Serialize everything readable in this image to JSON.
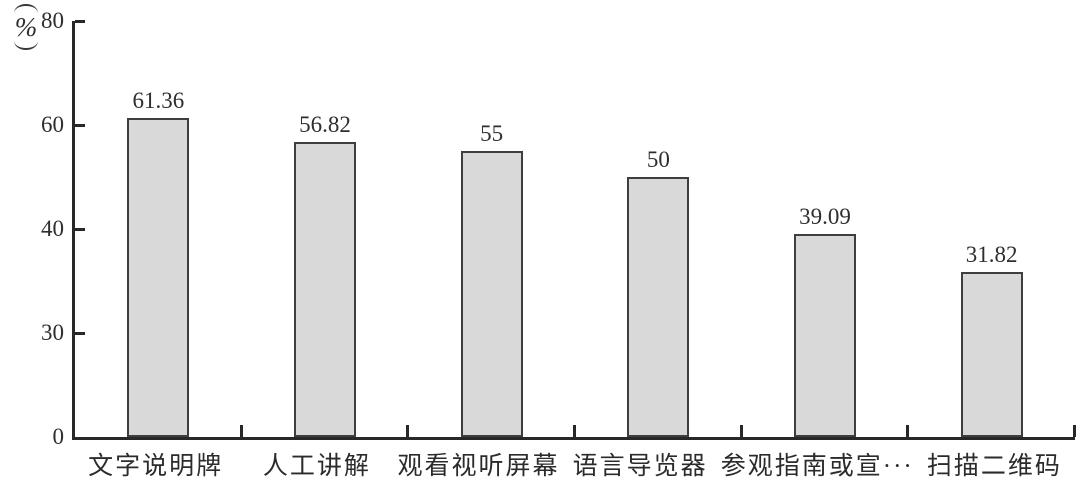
{
  "chart_data": {
    "type": "bar",
    "title": "",
    "unit_label": "%",
    "categories": [
      "文字说明牌",
      "人工讲解",
      "观看视听屏幕",
      "语言导览器",
      "参观指南或宣···",
      "扫描二维码"
    ],
    "values": [
      61.36,
      56.82,
      55,
      50,
      39.09,
      31.82
    ],
    "value_labels": [
      "61.36",
      "56.82",
      "55",
      "50",
      "39.09",
      "31.82"
    ],
    "yticks": [
      80,
      60,
      40,
      30,
      0
    ],
    "ylim": [
      0,
      80
    ],
    "xlabel": "",
    "ylabel": "(%)",
    "grid": false,
    "legend": "none",
    "bar_fill": "#d9d9d9",
    "bar_border": "#3e3e3e",
    "axis_color": "#282828",
    "text_color": "#2e2e2e"
  }
}
